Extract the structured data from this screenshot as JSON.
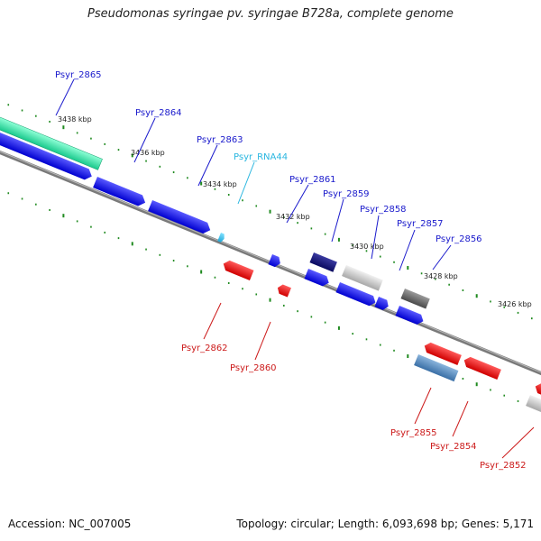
{
  "title": "Pseudomonas syringae pv. syringae B728a, complete genome",
  "footer": {
    "accession": "Accession: NC_007005",
    "summary": "Topology: circular; Length: 6,093,698 bp; Genes: 5,171"
  },
  "colors": {
    "plus_label": "#1a1acc",
    "minus_label": "#cc1a1a",
    "rna_label": "#29b6e0",
    "tick": "#1f8a1f",
    "backbone": "#808080"
  },
  "scale_labels": [
    "3438 kbp",
    "3436 kbp",
    "3434 kbp",
    "3432 kbp",
    "3430 kbp",
    "3428 kbp",
    "3426 kbp"
  ],
  "genes": [
    {
      "id": "Psyr_2865",
      "strand": "plus"
    },
    {
      "id": "Psyr_2864",
      "strand": "plus"
    },
    {
      "id": "Psyr_2863",
      "strand": "plus"
    },
    {
      "id": "Psyr_RNA44",
      "strand": "rna"
    },
    {
      "id": "Psyr_2862",
      "strand": "minus"
    },
    {
      "id": "Psyr_2861",
      "strand": "plus"
    },
    {
      "id": "Psyr_2860",
      "strand": "minus"
    },
    {
      "id": "Psyr_2859",
      "strand": "plus"
    },
    {
      "id": "Psyr_2858",
      "strand": "plus"
    },
    {
      "id": "Psyr_2857",
      "strand": "plus"
    },
    {
      "id": "Psyr_2856",
      "strand": "plus"
    },
    {
      "id": "Psyr_2855",
      "strand": "minus"
    },
    {
      "id": "Psyr_2854",
      "strand": "minus"
    },
    {
      "id": "Psyr_2852",
      "strand": "minus"
    }
  ]
}
